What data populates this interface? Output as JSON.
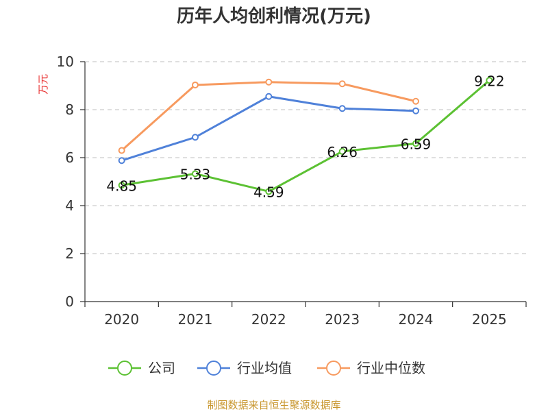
{
  "chart_data": {
    "type": "line",
    "title": "历年人均创利情况(万元)",
    "ylabel": "万元",
    "xlabel": "",
    "categories": [
      "2020",
      "2021",
      "2022",
      "2023",
      "2024",
      "2025"
    ],
    "ylim": [
      0,
      10
    ],
    "yticks": [
      0,
      2,
      4,
      6,
      8,
      10
    ],
    "grid": true,
    "legend_position": "bottom",
    "series": [
      {
        "name": "公司",
        "color": "#5cc133",
        "values": [
          4.85,
          5.33,
          4.59,
          6.26,
          6.59,
          9.22
        ],
        "labels": [
          "4.85",
          "5.33",
          "4.59",
          "6.26",
          "6.59",
          "9.22"
        ]
      },
      {
        "name": "行业均值",
        "color": "#4f81d9",
        "values": [
          5.88,
          6.85,
          8.55,
          8.05,
          7.95,
          null
        ]
      },
      {
        "name": "行业中位数",
        "color": "#f79a5f",
        "values": [
          6.3,
          9.03,
          9.15,
          9.08,
          8.35,
          null
        ]
      }
    ]
  },
  "footer": {
    "source": "制图数据来自恒生聚源数据库"
  },
  "colors": {
    "axis": "#333333",
    "grid": "#cccccc",
    "ylabel": "#e83030",
    "source": "#c8962d"
  }
}
